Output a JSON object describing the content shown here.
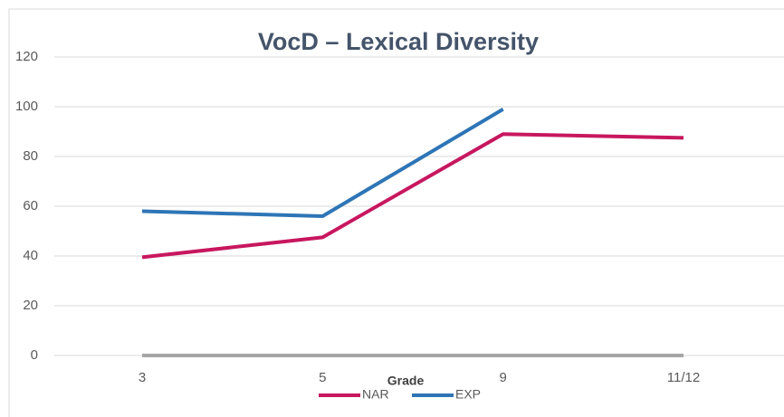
{
  "chart_data": {
    "type": "line",
    "title": "VocD – Lexical Diversity",
    "x_label": "Grade",
    "categories": [
      "3",
      "5",
      "9",
      "11/12"
    ],
    "series": [
      {
        "name": "NAR",
        "color": "#c7175f",
        "values": [
          39.5,
          47.5,
          89,
          87.5
        ]
      },
      {
        "name": "EXP",
        "color": "#2e75b6",
        "values": [
          58,
          56,
          99,
          null
        ]
      }
    ],
    "ylim": [
      0,
      120
    ],
    "yticks": [
      0,
      20,
      40,
      60,
      80,
      100,
      120
    ],
    "grid": true,
    "legend": "bottom"
  }
}
